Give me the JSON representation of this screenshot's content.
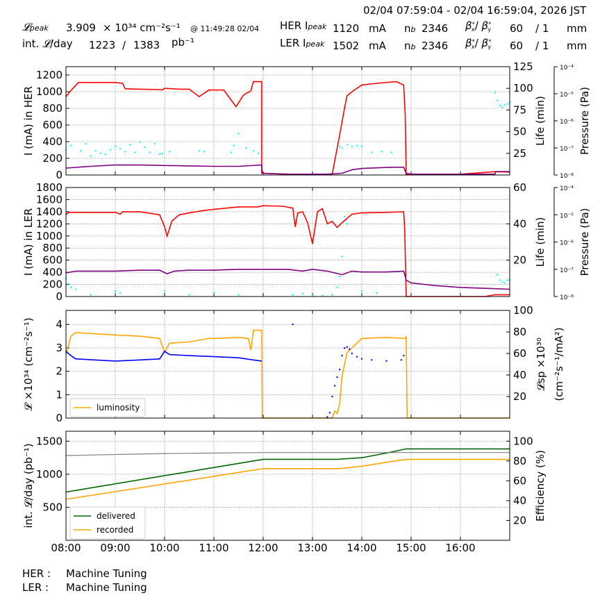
{
  "header": {
    "time_range": "02/04 07:59:04 - 02/04 16:59:04, 2026 JST",
    "row1": {
      "lum_label": "𝓛peak",
      "lum_value": "3.909",
      "lum_unit": "× 10³⁴ cm⁻²s⁻¹",
      "lum_time": "@ 11:49:28 02/04",
      "her_label": "HER Ipeak",
      "her_value": "1120",
      "her_unit": "mA",
      "nb_label": "nb",
      "nb_value": "2346",
      "beta_label": "βx*/ βy*",
      "beta_x": "60",
      "beta_y": "/ 1",
      "beta_unit": "mm"
    },
    "row2": {
      "int_label": "int. 𝓛/day",
      "int_value": "1223",
      "int_sep": "/",
      "int_value2": "1383",
      "int_unit": "pb⁻¹",
      "ler_label": "LER Ipeak",
      "ler_value": "1502",
      "ler_unit": "mA",
      "nb_label": "nb",
      "nb_value": "2346",
      "beta_label": "βx*/ βy*",
      "beta_x": "60",
      "beta_y": "/ 1",
      "beta_unit": "mm"
    }
  },
  "footer": {
    "her_label": "HER :",
    "her_status": "Machine Tuning",
    "ler_label": "LER :",
    "ler_status": "Machine Tuning"
  },
  "colors": {
    "current": "#ff0000",
    "life": "#800080",
    "pressure": "#00ffff",
    "luminosity": "#ffa500",
    "specific": "#0000ff",
    "delivered": "#006400",
    "recorded": "#ffa500",
    "efficiency": "#808080"
  },
  "chart_data": [
    {
      "id": "her",
      "type": "line",
      "ylabel": "I (mA) in HER",
      "ylabel_right": "Life (min)",
      "ylabel_right2": "Pressure (Pa)",
      "ylim": [
        0,
        1300
      ],
      "yticks": [
        0,
        200,
        400,
        600,
        800,
        1000,
        1200
      ],
      "ylim_right": [
        0,
        125
      ],
      "yticks_right": [
        25,
        50,
        75,
        100,
        125
      ],
      "pressure_ticks": [
        "10⁻⁴",
        "10⁻⁵",
        "10⁻⁶",
        "10⁻⁷",
        "10⁻⁸"
      ],
      "xlim": [
        8.0,
        17.0
      ],
      "series": [
        {
          "role": "current",
          "x": [
            8.0,
            8.08,
            8.25,
            9.0,
            9.15,
            9.2,
            9.5,
            9.9,
            9.95,
            10.0,
            10.3,
            10.5,
            10.7,
            10.9,
            11.2,
            11.35,
            11.45,
            11.6,
            11.75,
            11.8,
            11.97,
            11.97,
            12.0,
            12.5,
            13.0,
            13.25,
            13.4,
            13.55,
            13.65,
            13.7,
            13.8,
            14.0,
            14.3,
            14.7,
            14.85,
            14.88,
            14.9,
            15.0,
            16.0,
            16.7,
            17.0
          ],
          "y": [
            940,
            1000,
            1110,
            1110,
            1100,
            1035,
            1030,
            1025,
            1020,
            1040,
            1030,
            1030,
            940,
            1020,
            1020,
            900,
            820,
            960,
            1010,
            1120,
            1120,
            20,
            20,
            10,
            10,
            10,
            10,
            480,
            800,
            950,
            1000,
            1080,
            1100,
            1120,
            1080,
            720,
            10,
            10,
            10,
            40,
            35
          ]
        },
        {
          "role": "life",
          "x": [
            8.0,
            8.5,
            9.0,
            9.5,
            10.0,
            10.5,
            11.0,
            11.5,
            11.97,
            11.98,
            12.5,
            13.0,
            13.3,
            13.6,
            13.8,
            14.0,
            14.6,
            14.85,
            14.9,
            15.0,
            15.5,
            16.0,
            16.7,
            16.72,
            17.0
          ],
          "y": [
            8,
            10,
            11.5,
            11.5,
            11,
            10.5,
            10,
            10,
            11.5,
            2,
            1,
            1,
            1,
            2,
            6,
            7.5,
            9,
            9,
            2,
            1,
            1,
            1,
            1,
            4,
            4
          ]
        },
        {
          "role": "pressure",
          "points": [
            [
              8.0,
              29
            ],
            [
              8.1,
              34
            ],
            [
              8.3,
              28
            ],
            [
              8.4,
              36
            ],
            [
              8.5,
              22
            ],
            [
              8.6,
              28
            ],
            [
              8.7,
              25
            ],
            [
              8.8,
              24
            ],
            [
              8.9,
              29
            ],
            [
              9.0,
              33
            ],
            [
              9.1,
              30
            ],
            [
              9.2,
              27
            ],
            [
              9.3,
              35
            ],
            [
              9.4,
              26
            ],
            [
              9.5,
              38
            ],
            [
              9.6,
              32
            ],
            [
              9.7,
              26
            ],
            [
              9.8,
              36
            ],
            [
              9.9,
              24
            ],
            [
              9.95,
              25
            ],
            [
              10.1,
              27
            ],
            [
              10.7,
              28
            ],
            [
              10.8,
              27
            ],
            [
              11.35,
              26
            ],
            [
              11.4,
              34
            ],
            [
              11.5,
              48
            ],
            [
              11.65,
              31
            ],
            [
              11.8,
              28
            ],
            [
              11.9,
              25
            ],
            [
              13.55,
              33
            ],
            [
              13.6,
              31
            ],
            [
              13.7,
              35
            ],
            [
              13.8,
              33
            ],
            [
              13.9,
              34
            ],
            [
              14.0,
              33
            ],
            [
              14.2,
              26
            ],
            [
              14.4,
              27
            ],
            [
              14.6,
              26
            ],
            [
              16.7,
              95
            ],
            [
              16.75,
              86
            ],
            [
              16.8,
              80
            ],
            [
              16.85,
              78
            ],
            [
              16.9,
              81
            ],
            [
              16.95,
              82
            ],
            [
              17.0,
              84
            ]
          ]
        }
      ]
    },
    {
      "id": "ler",
      "type": "line",
      "ylabel": "I (mA) in LER",
      "ylabel_right": "Life (min)",
      "ylabel_right2": "Pressure (Pa)",
      "ylim": [
        0,
        1800
      ],
      "yticks": [
        0,
        200,
        400,
        600,
        800,
        1000,
        1200,
        1400,
        1600,
        1800
      ],
      "ylim_right": [
        0,
        60
      ],
      "yticks_right": [
        20,
        40,
        60
      ],
      "pressure_ticks": [
        "10⁻⁴",
        "10⁻⁵",
        "10⁻⁶",
        "10⁻⁷",
        "10⁻⁸"
      ],
      "xlim": [
        8.0,
        17.0
      ],
      "series": [
        {
          "role": "current",
          "x": [
            8.0,
            8.05,
            9.0,
            9.1,
            9.15,
            9.5,
            9.9,
            10.0,
            10.05,
            10.15,
            10.3,
            10.5,
            10.8,
            11.0,
            11.5,
            11.9,
            12.0,
            12.4,
            12.6,
            12.65,
            12.7,
            12.8,
            12.9,
            13.0,
            13.1,
            13.2,
            13.3,
            13.4,
            13.5,
            13.6,
            13.8,
            14.0,
            14.5,
            14.85,
            14.87,
            14.9,
            15.0,
            16.0,
            16.5,
            16.7,
            17.0
          ],
          "y": [
            1350,
            1390,
            1390,
            1360,
            1400,
            1400,
            1350,
            1150,
            1000,
            1250,
            1350,
            1380,
            1420,
            1440,
            1480,
            1480,
            1500,
            1490,
            1460,
            1150,
            1380,
            1400,
            1220,
            870,
            1400,
            1450,
            1200,
            1240,
            1140,
            1220,
            1360,
            1380,
            1390,
            1400,
            1100,
            0,
            0,
            0,
            0,
            30,
            30
          ]
        },
        {
          "role": "life",
          "x": [
            8.0,
            8.2,
            9.0,
            9.5,
            9.9,
            10.05,
            10.2,
            10.5,
            11.0,
            11.5,
            12.0,
            12.5,
            12.8,
            13.0,
            13.3,
            13.6,
            13.8,
            14.0,
            14.5,
            14.85,
            14.9,
            15.0,
            15.5,
            16.0,
            16.5,
            17.0
          ],
          "y": [
            13,
            14,
            14,
            14.5,
            14.5,
            12.5,
            14,
            14.5,
            14.5,
            15,
            15,
            15,
            14,
            15,
            14,
            12,
            14,
            13.5,
            13.5,
            14,
            9,
            7.5,
            6,
            5,
            4.5,
            4
          ]
        },
        {
          "role": "pressure",
          "points": [
            [
              8.0,
              10
            ],
            [
              8.05,
              7
            ],
            [
              8.1,
              5
            ],
            [
              8.2,
              4
            ],
            [
              8.5,
              1
            ],
            [
              9.0,
              3
            ],
            [
              9.1,
              2
            ],
            [
              10.0,
              3
            ],
            [
              10.5,
              1
            ],
            [
              11.0,
              2
            ],
            [
              11.5,
              1
            ],
            [
              12.6,
              1
            ],
            [
              12.8,
              1.5
            ],
            [
              13.0,
              0.8
            ],
            [
              13.2,
              0.5
            ],
            [
              13.4,
              1
            ],
            [
              13.5,
              5
            ],
            [
              13.55,
              11
            ],
            [
              13.6,
              22
            ],
            [
              13.65,
              44
            ],
            [
              13.7,
              40
            ],
            [
              14.0,
              3
            ],
            [
              14.3,
              2
            ],
            [
              16.75,
              12
            ],
            [
              16.8,
              9
            ],
            [
              16.85,
              8
            ],
            [
              16.9,
              7.5
            ],
            [
              16.95,
              9
            ],
            [
              17.0,
              9
            ]
          ]
        }
      ]
    },
    {
      "id": "lum",
      "type": "line",
      "ylabel": "𝓛 ×10³⁴ (cm⁻²s⁻¹)",
      "ylabel_right": "𝓛sp ×10³⁰",
      "ylabel_right2": "(cm⁻²s⁻¹/mA²)",
      "ylim": [
        0,
        4.6
      ],
      "yticks": [
        0,
        1,
        2,
        3,
        4
      ],
      "ylim_right": [
        0,
        100
      ],
      "yticks_right": [
        20,
        40,
        60,
        80,
        100
      ],
      "xlim": [
        8.0,
        17.0
      ],
      "legend": [
        "luminosity"
      ],
      "series": [
        {
          "role": "luminosity",
          "name": "luminosity",
          "x": [
            8.0,
            8.1,
            8.2,
            9.0,
            9.5,
            9.9,
            10.0,
            10.1,
            10.5,
            10.9,
            11.0,
            11.5,
            11.7,
            11.75,
            11.8,
            11.97,
            11.98,
            12.5,
            13.0,
            13.4,
            13.45,
            13.5,
            13.55,
            13.6,
            13.7,
            13.8,
            14.0,
            14.5,
            14.88,
            14.9,
            14.92,
            15.5,
            16.5,
            17.0
          ],
          "y": [
            2.7,
            3.5,
            3.65,
            3.55,
            3.5,
            3.4,
            2.8,
            3.2,
            3.25,
            3.4,
            3.4,
            3.45,
            3.4,
            2.9,
            3.75,
            3.75,
            0,
            0,
            0,
            0,
            0.3,
            0.2,
            0.6,
            1.8,
            2.8,
            3.0,
            3.4,
            3.45,
            3.4,
            3.5,
            0,
            0,
            0,
            0
          ]
        },
        {
          "role": "specific",
          "x": [
            8.0,
            8.1,
            8.2,
            9.0,
            9.5,
            9.9,
            10.0,
            10.1,
            10.5,
            11.0,
            11.5,
            11.8,
            11.97
          ],
          "y": [
            62,
            58,
            55,
            53,
            54,
            55,
            62,
            59,
            58,
            57,
            56,
            54,
            53
          ]
        },
        {
          "role": "specific_dots",
          "points": [
            [
              12.6,
              87
            ],
            [
              13.3,
              1
            ],
            [
              13.35,
              5
            ],
            [
              13.4,
              20
            ],
            [
              13.45,
              30
            ],
            [
              13.5,
              38
            ],
            [
              13.55,
              45
            ],
            [
              13.6,
              58
            ],
            [
              13.65,
              65
            ],
            [
              13.7,
              66
            ],
            [
              13.75,
              64
            ],
            [
              13.8,
              60
            ],
            [
              13.9,
              57
            ],
            [
              14.0,
              55
            ],
            [
              14.2,
              54
            ],
            [
              14.5,
              53
            ],
            [
              14.8,
              54
            ],
            [
              14.85,
              58
            ]
          ]
        }
      ]
    },
    {
      "id": "intlum",
      "type": "line",
      "ylabel": "int. 𝓛/day (pb⁻¹)",
      "ylabel_right": "Efficiency (%)",
      "ylim": [
        0,
        1650
      ],
      "yticks": [
        500,
        1000,
        1500
      ],
      "ylim_right": [
        0,
        110
      ],
      "yticks_right": [
        20,
        40,
        60,
        80,
        100
      ],
      "xlim": [
        8.0,
        17.0
      ],
      "xticks": [
        "08:00",
        "09:00",
        "10:00",
        "11:00",
        "12:00",
        "13:00",
        "14:00",
        "15:00",
        "16:00"
      ],
      "legend": [
        "delivered",
        "recorded"
      ],
      "series": [
        {
          "role": "delivered",
          "name": "delivered",
          "x": [
            8.0,
            12.0,
            13.5,
            14.0,
            14.5,
            14.9,
            17.0
          ],
          "y": [
            730,
            1225,
            1225,
            1250,
            1320,
            1383,
            1383
          ]
        },
        {
          "role": "recorded",
          "name": "recorded",
          "x": [
            8.0,
            12.0,
            13.55,
            14.0,
            14.5,
            14.9,
            17.0
          ],
          "y": [
            620,
            1085,
            1085,
            1120,
            1180,
            1223,
            1223
          ]
        },
        {
          "role": "efficiency",
          "x": [
            8.0,
            9.0,
            10.0,
            11.0,
            12.0,
            13.0,
            14.0,
            15.0,
            16.0,
            17.0
          ],
          "y": [
            85.5,
            86.5,
            87.5,
            88,
            88.5,
            88.5,
            88.5,
            88.5,
            88.5,
            88.5
          ]
        }
      ]
    }
  ]
}
